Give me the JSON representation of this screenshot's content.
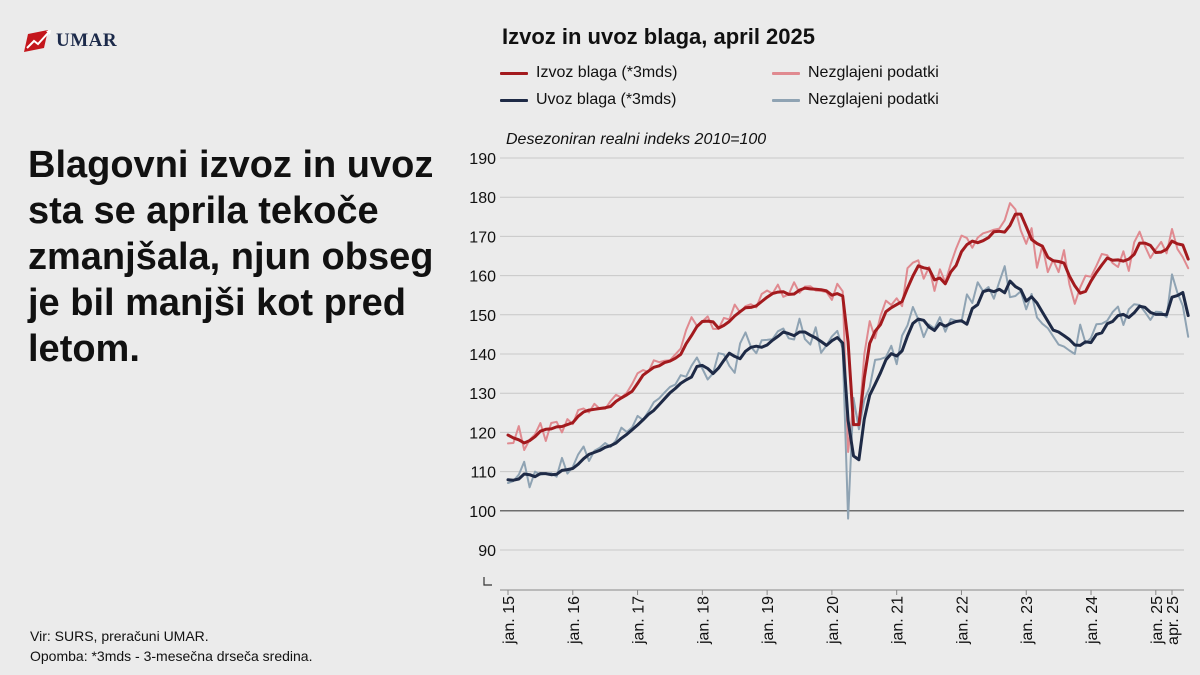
{
  "brand": {
    "name": "UMAR",
    "color": "#c4161c"
  },
  "headline": "Blagovni izvoz in uvoz sta se aprila tekoče zmanjšala, njun obseg je bil manjši kot pred letom.",
  "footer": {
    "source": "Vir: SURS, preračuni UMAR.",
    "note": "Opomba: *3mds - 3-mesečna drseča sredina."
  },
  "chart_data": {
    "type": "line",
    "title": "Izvoz in uvoz blaga, april 2025",
    "subtitle": "Desezoniran realni indeks 2010=100",
    "x_start": "2015-01",
    "x_end": "2025-04",
    "ylim": [
      85,
      190
    ],
    "y_ticks": [
      90,
      100,
      110,
      120,
      130,
      140,
      150,
      160,
      170,
      180,
      190
    ],
    "x_ticks": [
      "jan. 15",
      "jan. 16",
      "jan. 17",
      "jan. 18",
      "jan. 19",
      "jan. 20",
      "jan. 21",
      "jan. 22",
      "jan. 23",
      "jan. 24",
      "jan. 25",
      "apr. 25"
    ],
    "grid": true,
    "reference_line": 100,
    "legend_position": "top",
    "series": [
      {
        "name": "Izvoz blaga (*3mds)",
        "color": "#a31a1e",
        "width": 3,
        "values": [
          119.3,
          118.6,
          118.1,
          117.3,
          117.9,
          118.9,
          120.3,
          120.8,
          120.9,
          121.4,
          121.5,
          122.0,
          122.5,
          124.1,
          125.2,
          125.7,
          125.9,
          126.1,
          126.3,
          126.6,
          127.9,
          128.8,
          129.6,
          130.5,
          132.5,
          134.6,
          135.6,
          136.6,
          137.0,
          137.8,
          138.2,
          138.9,
          139.9,
          142.6,
          144.7,
          147.0,
          148.3,
          148.4,
          148.2,
          146.6,
          147.3,
          148.3,
          149.7,
          150.8,
          151.8,
          151.9,
          152.3,
          153.4,
          154.5,
          155.4,
          155.8,
          155.9,
          155.2,
          155.3,
          156.3,
          156.8,
          156.6,
          156.5,
          156.4,
          156.1,
          155.0,
          155.4,
          154.8,
          143.0,
          122.0,
          122.0,
          133.9,
          142.7,
          145.8,
          147.5,
          150.8,
          151.8,
          152.6,
          153.4,
          156.8,
          159.9,
          162.5,
          162.0,
          161.7,
          158.9,
          159.4,
          157.9,
          160.9,
          162.6,
          166.1,
          167.9,
          168.8,
          168.4,
          168.9,
          169.7,
          171.2,
          171.3,
          171.1,
          172.8,
          175.7,
          175.7,
          172.5,
          169.2,
          168.2,
          167.5,
          164.7,
          163.8,
          163.6,
          163.2,
          159.9,
          157.4,
          155.5,
          156.0,
          158.6,
          160.8,
          162.7,
          164.5,
          163.9,
          164.0,
          163.7,
          164.2,
          165.4,
          168.3,
          168.3,
          167.7,
          165.9,
          166.0,
          166.7,
          168.8,
          168.1,
          167.8,
          164.2
        ]
      },
      {
        "name": "Nezglajeni podatki",
        "color": "#e08a90",
        "width": 2,
        "values": [
          117.2,
          117.3,
          121.6,
          115.5,
          118.1,
          119.5,
          122.4,
          117.8,
          122.4,
          122.7,
          120.0,
          123.4,
          122.1,
          125.7,
          126.1,
          125.1,
          127.3,
          126.0,
          126.0,
          128.0,
          129.6,
          128.9,
          130.1,
          132.4,
          135.1,
          135.9,
          135.4,
          138.4,
          137.9,
          138.3,
          138.4,
          139.9,
          141.4,
          146.1,
          149.4,
          147.2,
          148.3,
          149.6,
          146.4,
          146.4,
          149.2,
          148.8,
          152.6,
          150.6,
          152.2,
          152.7,
          151.9,
          155.3,
          156.2,
          155.4,
          157.7,
          154.6,
          155.2,
          158.3,
          155.6,
          157.2,
          157.3,
          156.2,
          156.1,
          155.8,
          153.8,
          157.9,
          156.0,
          115.0,
          127.5,
          122.0,
          139.9,
          148.4,
          144.0,
          149.7,
          153.6,
          152.5,
          154.2,
          152.2,
          161.9,
          163.3,
          163.9,
          159.2,
          162.2,
          156.1,
          161.6,
          158.3,
          162.9,
          166.9,
          170.2,
          169.6,
          167.1,
          169.7,
          170.8,
          171.2,
          171.7,
          172.0,
          174.1,
          178.5,
          176.9,
          171.5,
          168.1,
          172.1,
          162.0,
          167.7,
          160.9,
          164.0,
          160.9,
          166.5,
          157.8,
          152.8,
          157.0,
          160.0,
          159.7,
          162.5,
          165.5,
          165.2,
          163.2,
          162.2,
          166.2,
          161.2,
          168.5,
          171.2,
          167.5,
          164.5,
          166.7,
          168.6,
          165.7,
          171.9,
          166.8,
          164.7,
          161.9
        ]
      },
      {
        "name": "Uvoz blaga (*3mds)",
        "color": "#1e2a46",
        "width": 3,
        "values": [
          107.9,
          107.8,
          108.1,
          109.4,
          109.2,
          108.7,
          109.5,
          109.5,
          109.2,
          109.3,
          110.3,
          110.5,
          110.8,
          111.9,
          113.3,
          114.4,
          114.9,
          115.4,
          116.2,
          116.6,
          117.3,
          118.5,
          119.5,
          120.7,
          121.9,
          123.2,
          124.6,
          125.6,
          127.1,
          128.6,
          130.1,
          131.2,
          132.5,
          133.4,
          134.1,
          136.8,
          137.1,
          136.3,
          135.0,
          136.4,
          138.4,
          140.2,
          139.4,
          138.8,
          140.7,
          141.7,
          142.0,
          141.7,
          142.3,
          143.5,
          144.5,
          145.6,
          145.2,
          144.7,
          145.6,
          145.6,
          144.8,
          144.1,
          143.2,
          142.2,
          143.4,
          144.2,
          142.8,
          123.0,
          114.0,
          113.0,
          123.4,
          129.5,
          132.3,
          135.2,
          138.5,
          140.1,
          139.5,
          140.8,
          144.6,
          147.8,
          148.9,
          148.6,
          146.9,
          146.0,
          147.8,
          147.1,
          147.8,
          148.3,
          148.5,
          147.6,
          151.6,
          152.6,
          155.9,
          156.3,
          155.9,
          156.5,
          155.6,
          158.6,
          157.2,
          156.4,
          153.5,
          154.6,
          153.0,
          150.7,
          148.4,
          146.1,
          145.6,
          144.7,
          143.7,
          142.3,
          142.2,
          143.1,
          142.9,
          145.0,
          145.4,
          147.7,
          148.3,
          149.8,
          150.1,
          149.3,
          150.5,
          152.2,
          151.9,
          150.6,
          150.1,
          150.1,
          150.0,
          154.5,
          154.9,
          155.7,
          149.8
        ]
      },
      {
        "name": "Nezglajeni podatki",
        "color": "#8fa3b3",
        "width": 2,
        "values": [
          107.1,
          107.6,
          109.2,
          112.5,
          106.0,
          110.0,
          109.2,
          109.5,
          109.6,
          108.7,
          113.5,
          109.5,
          111.2,
          114.4,
          116.4,
          112.7,
          115.3,
          116.1,
          117.3,
          116.3,
          118.0,
          121.2,
          120.1,
          121.3,
          124.2,
          123.2,
          125.3,
          127.7,
          128.7,
          130.2,
          131.6,
          132.2,
          134.6,
          134.2,
          137.0,
          139.1,
          136.3,
          133.5,
          135.1,
          140.2,
          139.9,
          137.0,
          135.2,
          142.7,
          145.5,
          141.8,
          140.2,
          143.5,
          143.6,
          143.8,
          145.8,
          146.5,
          144.0,
          143.7,
          149.0,
          143.8,
          142.4,
          146.8,
          140.3,
          142.2,
          144.5,
          145.9,
          141.3,
          98.0,
          128.8,
          120.8,
          128.2,
          131.5,
          138.5,
          138.7,
          139.2,
          142.1,
          137.4,
          144.7,
          147.3,
          152.0,
          148.8,
          144.3,
          147.5,
          146.5,
          149.4,
          145.7,
          148.9,
          148.5,
          148.2,
          155.2,
          153.0,
          158.3,
          156.0,
          157.1,
          154.1,
          158.4,
          162.4,
          154.5,
          154.8,
          156.0,
          151.4,
          155.3,
          149.3,
          147.7,
          146.6,
          144.5,
          142.4,
          141.9,
          140.9,
          140.0,
          147.5,
          142.7,
          144.1,
          147.6,
          147.7,
          148.5,
          150.7,
          152.1,
          147.4,
          151.4,
          152.7,
          152.5,
          150.7,
          148.7,
          150.8,
          150.7,
          149.4,
          160.3,
          155.6,
          152.3,
          144.4
        ]
      }
    ]
  }
}
